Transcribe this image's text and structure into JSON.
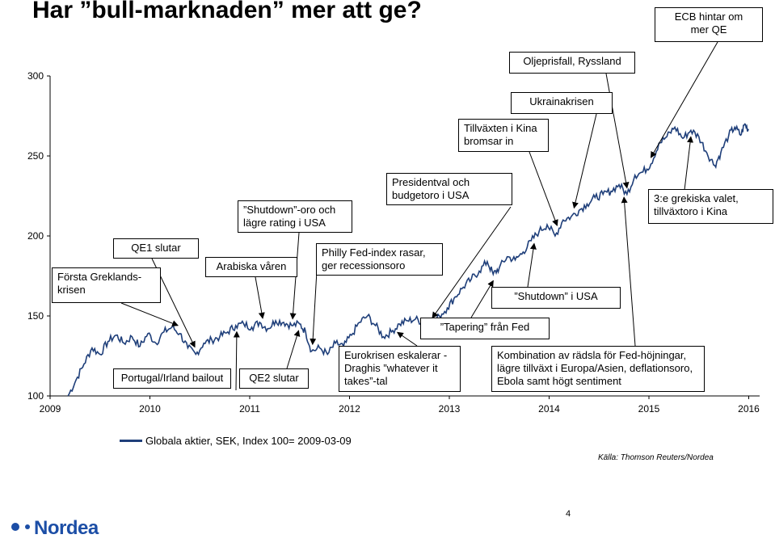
{
  "title": "Har ”bull-marknaden” mer att ge?",
  "colors": {
    "series": "#1f3f7a",
    "logo": "#1c4ea6"
  },
  "legend": {
    "label": "Globala aktier, SEK, Index 100= 2009-03-09"
  },
  "source": "Källa: Thomson Reuters/Nordea",
  "page_number": "4",
  "logo_text": "Nordea",
  "chart_data": {
    "type": "line",
    "title": "Har ”bull-marknaden” mer att ge?",
    "xlabel": "",
    "ylabel": "",
    "xlim": [
      2009.18,
      2016.0
    ],
    "ylim": [
      100,
      300
    ],
    "yticks": [
      100,
      150,
      200,
      250,
      300
    ],
    "xticks": [
      "2009",
      "2010",
      "2011",
      "2012",
      "2013",
      "2014",
      "2015",
      "2016"
    ],
    "grid": false,
    "legend_position": "bottom-left",
    "series": [
      {
        "name": "Globala aktier, SEK, Index 100= 2009-03-09",
        "points": [
          [
            2009.18,
            100
          ],
          [
            2009.26,
            110
          ],
          [
            2009.34,
            120
          ],
          [
            2009.42,
            130
          ],
          [
            2009.5,
            126
          ],
          [
            2009.58,
            134
          ],
          [
            2009.66,
            138
          ],
          [
            2009.74,
            133
          ],
          [
            2009.82,
            137
          ],
          [
            2009.9,
            131
          ],
          [
            2009.98,
            139
          ],
          [
            2010.06,
            133
          ],
          [
            2010.14,
            140
          ],
          [
            2010.22,
            143
          ],
          [
            2010.3,
            139
          ],
          [
            2010.38,
            130
          ],
          [
            2010.46,
            126
          ],
          [
            2010.54,
            133
          ],
          [
            2010.62,
            135
          ],
          [
            2010.7,
            137
          ],
          [
            2010.78,
            140
          ],
          [
            2010.86,
            144
          ],
          [
            2010.94,
            145
          ],
          [
            2011.02,
            143
          ],
          [
            2011.1,
            146
          ],
          [
            2011.18,
            142
          ],
          [
            2011.26,
            147
          ],
          [
            2011.34,
            146
          ],
          [
            2011.42,
            144
          ],
          [
            2011.5,
            145
          ],
          [
            2011.56,
            140
          ],
          [
            2011.62,
            128
          ],
          [
            2011.7,
            130
          ],
          [
            2011.78,
            126
          ],
          [
            2011.86,
            133
          ],
          [
            2011.94,
            131
          ],
          [
            2012.02,
            138
          ],
          [
            2012.1,
            146
          ],
          [
            2012.18,
            150
          ],
          [
            2012.26,
            144
          ],
          [
            2012.34,
            137
          ],
          [
            2012.42,
            140
          ],
          [
            2012.5,
            145
          ],
          [
            2012.58,
            147
          ],
          [
            2012.66,
            148
          ],
          [
            2012.74,
            146
          ],
          [
            2012.82,
            144
          ],
          [
            2012.9,
            150
          ],
          [
            2012.98,
            155
          ],
          [
            2013.06,
            162
          ],
          [
            2013.14,
            168
          ],
          [
            2013.22,
            173
          ],
          [
            2013.3,
            178
          ],
          [
            2013.38,
            184
          ],
          [
            2013.44,
            176
          ],
          [
            2013.5,
            180
          ],
          [
            2013.58,
            187
          ],
          [
            2013.66,
            185
          ],
          [
            2013.74,
            190
          ],
          [
            2013.82,
            197
          ],
          [
            2013.9,
            203
          ],
          [
            2013.98,
            207
          ],
          [
            2014.06,
            200
          ],
          [
            2014.14,
            210
          ],
          [
            2014.22,
            212
          ],
          [
            2014.3,
            216
          ],
          [
            2014.38,
            220
          ],
          [
            2014.46,
            224
          ],
          [
            2014.54,
            226
          ],
          [
            2014.62,
            228
          ],
          [
            2014.7,
            232
          ],
          [
            2014.78,
            226
          ],
          [
            2014.86,
            238
          ],
          [
            2014.94,
            240
          ],
          [
            2015.02,
            245
          ],
          [
            2015.1,
            258
          ],
          [
            2015.18,
            262
          ],
          [
            2015.26,
            268
          ],
          [
            2015.34,
            261
          ],
          [
            2015.42,
            266
          ],
          [
            2015.5,
            262
          ],
          [
            2015.58,
            252
          ],
          [
            2015.66,
            244
          ],
          [
            2015.72,
            252
          ],
          [
            2015.8,
            263
          ],
          [
            2015.86,
            268
          ],
          [
            2015.92,
            263
          ],
          [
            2015.96,
            270
          ],
          [
            2016.0,
            266
          ]
        ]
      }
    ],
    "annotations": [
      {
        "id": "forsta-greklandskrisen",
        "text": "Första Greklands-\nkrisen",
        "x": 2010.28
      },
      {
        "id": "qe1-slutar",
        "text": "QE1 slutar",
        "x": 2010.45
      },
      {
        "id": "arabiska-varen",
        "text": "Arabiska våren",
        "x": 2011.13
      },
      {
        "id": "shutdown-oro",
        "text": "”Shutdown”-oro och\nlägre rating i USA",
        "x": 2011.43
      },
      {
        "id": "philly-fed",
        "text": "Philly Fed-index rasar,\nger recessionsoro",
        "x": 2011.63
      },
      {
        "id": "presidentval",
        "text": "Presidentval och\nbudgetoro i USA",
        "x": 2012.83
      },
      {
        "id": "tapering",
        "text": "”Tapering” från Fed",
        "x": 2013.44
      },
      {
        "id": "shutdown-usa",
        "text": "”Shutdown” i USA",
        "x": 2013.85
      },
      {
        "id": "tillvaxten-kina",
        "text": "Tillväxten i Kina\nbromsar in",
        "x": 2014.08
      },
      {
        "id": "ukrainakrisen",
        "text": "Ukrainakrisen",
        "x": 2014.25
      },
      {
        "id": "oljeprisfall",
        "text": "Oljeprisfall, Ryssland",
        "x": 2014.78
      },
      {
        "id": "ecb-qe",
        "text": "ECB hintar om\nmer QE",
        "x": 2015.02
      },
      {
        "id": "grekiska-valet",
        "text": "3:e grekiska valet,\ntillväxtoro i Kina",
        "x": 2015.42
      },
      {
        "id": "portugal-irland",
        "text": "Portugal/Irland bailout",
        "x": 2010.87
      },
      {
        "id": "qe2-slutar",
        "text": "QE2 slutar",
        "x": 2011.49
      },
      {
        "id": "eurokrisen",
        "text": "Eurokrisen eskalerar -\nDraghis ”whatever it\ntakes”-tal",
        "x": 2012.48
      },
      {
        "id": "kombination",
        "text": "Kombination av rädsla för Fed-höjningar,\nlägre tillväxt i Europa/Asien, deflationsoro,\nEbola samt högt sentiment",
        "x": 2014.75
      }
    ]
  }
}
